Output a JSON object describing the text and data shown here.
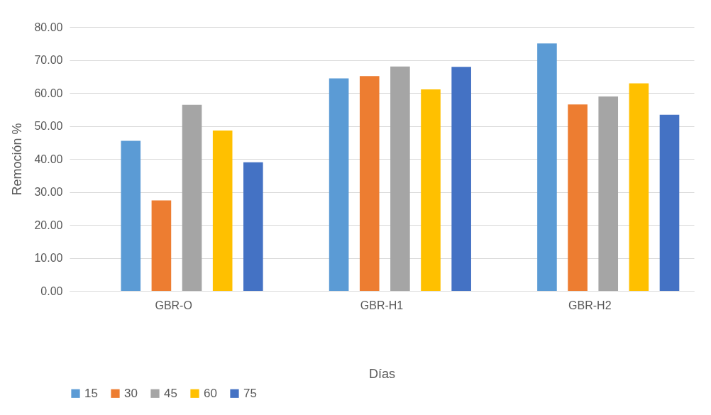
{
  "chart_data": {
    "type": "bar",
    "xlabel": "Días",
    "ylabel": "Remoción %",
    "categories": [
      "GBR-O",
      "GBR-H1",
      "GBR-H2"
    ],
    "series": [
      {
        "name": "15",
        "color": "#5b9bd5",
        "values": [
          45.5,
          64.4,
          75.0
        ]
      },
      {
        "name": "30",
        "color": "#ed7d31",
        "values": [
          27.4,
          65.1,
          56.5
        ]
      },
      {
        "name": "45",
        "color": "#a5a5a5",
        "values": [
          56.4,
          68.0,
          58.9
        ]
      },
      {
        "name": "60",
        "color": "#ffc000",
        "values": [
          48.6,
          61.1,
          62.9
        ]
      },
      {
        "name": "75",
        "color": "#4472c4",
        "values": [
          39.0,
          67.9,
          53.4
        ]
      }
    ],
    "ylim": [
      0,
      80
    ],
    "yticks": [
      {
        "value": 0,
        "label": "0.00"
      },
      {
        "value": 10,
        "label": "10.00"
      },
      {
        "value": 20,
        "label": "20.00"
      },
      {
        "value": 30,
        "label": "30.00"
      },
      {
        "value": 40,
        "label": "40.00"
      },
      {
        "value": 50,
        "label": "50.00"
      },
      {
        "value": 60,
        "label": "60.00"
      },
      {
        "value": 70,
        "label": "70.00"
      },
      {
        "value": 80,
        "label": "80.00"
      }
    ],
    "grid": "y",
    "legend": "bottom"
  }
}
